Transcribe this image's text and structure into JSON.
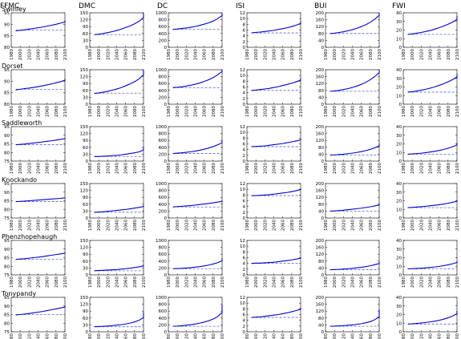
{
  "figure": {
    "column_headers": [
      "FFMC",
      "DMC",
      "DC",
      "ISI",
      "BUI",
      "FWI"
    ],
    "row_titles": [
      "Swinley",
      "Dorset",
      "Saddleworth",
      "Knockando",
      "Phenzhopehaugh",
      "Tonypandy"
    ],
    "x_ticks": [
      "1980",
      "2000",
      "2020",
      "2040",
      "2060",
      "2080",
      "2100"
    ],
    "line_color": "#0000cc",
    "baseline_color": "#5566dd"
  },
  "chart_data": {
    "type": "line",
    "layout": "small multiples, 6 sites (rows) x 6 fire-weather indices (columns)",
    "x_range": [
      1980,
      2100
    ],
    "series_note": "solid line = projected index; dashed line = baseline level",
    "columns": [
      {
        "name": "FFMC",
        "ylims": [
          [
            80,
            95
          ],
          [
            80,
            95
          ],
          [
            75,
            95
          ],
          [
            75,
            95
          ],
          [
            75,
            95
          ],
          [
            75,
            95
          ]
        ],
        "yticks": [
          [
            "80",
            "85",
            "90",
            "95"
          ],
          [
            "80",
            "85",
            "90",
            "95"
          ],
          [
            "75",
            "80",
            "85",
            "90",
            "95"
          ],
          [
            "75",
            "80",
            "85",
            "90",
            "95"
          ],
          [
            "75",
            "80",
            "85",
            "90",
            "95"
          ],
          [
            "75",
            "80",
            "85",
            "90",
            "95"
          ]
        ]
      },
      {
        "name": "DMC",
        "ylims": [
          [
            0,
            150
          ],
          [
            0,
            150
          ],
          [
            0,
            150
          ],
          [
            0,
            150
          ],
          [
            0,
            150
          ],
          [
            0,
            150
          ]
        ],
        "yticks": [
          [
            "0",
            "30",
            "60",
            "90",
            "120",
            "150"
          ],
          [
            "0",
            "30",
            "60",
            "90",
            "120",
            "150"
          ],
          [
            "0",
            "30",
            "60",
            "90",
            "120",
            "150"
          ],
          [
            "0",
            "30",
            "60",
            "90",
            "120",
            "150"
          ],
          [
            "0",
            "30",
            "60",
            "90",
            "120",
            "150"
          ],
          [
            "0",
            "30",
            "60",
            "90",
            "120",
            "150"
          ]
        ]
      },
      {
        "name": "DC",
        "ylims": [
          [
            0,
            1000
          ],
          [
            0,
            1000
          ],
          [
            0,
            1000
          ],
          [
            0,
            1000
          ],
          [
            0,
            1000
          ],
          [
            0,
            1000
          ]
        ],
        "yticks": [
          [
            "0",
            "200",
            "400",
            "600",
            "800",
            "1000"
          ],
          [
            "0",
            "200",
            "400",
            "600",
            "800",
            "1000"
          ],
          [
            "0",
            "200",
            "400",
            "600",
            "800",
            "1000"
          ],
          [
            "0",
            "200",
            "400",
            "600",
            "800",
            "1000"
          ],
          [
            "0",
            "200",
            "400",
            "600",
            "800",
            "1000"
          ],
          [
            "0",
            "200",
            "400",
            "600",
            "800",
            "1000"
          ]
        ]
      },
      {
        "name": "ISI",
        "ylims": [
          [
            0,
            12
          ],
          [
            0,
            12
          ],
          [
            0,
            12
          ],
          [
            0,
            12
          ],
          [
            0,
            12
          ],
          [
            0,
            12
          ]
        ],
        "yticks": [
          [
            "0",
            "2",
            "4",
            "6",
            "8",
            "10",
            "12"
          ],
          [
            "0",
            "2",
            "4",
            "6",
            "8",
            "10",
            "12"
          ],
          [
            "0",
            "2",
            "4",
            "6",
            "8",
            "10",
            "12"
          ],
          [
            "0",
            "2",
            "4",
            "6",
            "8",
            "10",
            "12"
          ],
          [
            "0",
            "2",
            "4",
            "6",
            "8",
            "10",
            "12"
          ],
          [
            "0",
            "2",
            "4",
            "6",
            "8",
            "10",
            "12"
          ]
        ]
      },
      {
        "name": "BUI",
        "ylims": [
          [
            0,
            200
          ],
          [
            0,
            200
          ],
          [
            0,
            200
          ],
          [
            0,
            200
          ],
          [
            0,
            200
          ],
          [
            0,
            200
          ]
        ],
        "yticks": [
          [
            "0",
            "40",
            "80",
            "120",
            "160",
            "200"
          ],
          [
            "0",
            "40",
            "80",
            "120",
            "160",
            "200"
          ],
          [
            "0",
            "40",
            "80",
            "120",
            "160",
            "200"
          ],
          [
            "0",
            "40",
            "80",
            "120",
            "160",
            "200"
          ],
          [
            "0",
            "40",
            "80",
            "120",
            "160",
            "200"
          ],
          [
            "0",
            "40",
            "80",
            "120",
            "160",
            "200"
          ]
        ]
      },
      {
        "name": "FWI",
        "ylims": [
          [
            0,
            40
          ],
          [
            0,
            40
          ],
          [
            0,
            40
          ],
          [
            0,
            40
          ],
          [
            0,
            40
          ],
          [
            0,
            40
          ]
        ],
        "yticks": [
          [
            "0",
            "10",
            "20",
            "30",
            "40"
          ],
          [
            "0",
            "10",
            "20",
            "30",
            "40"
          ],
          [
            "0",
            "10",
            "20",
            "30",
            "40"
          ],
          [
            "0",
            "10",
            "20",
            "30",
            "40"
          ],
          [
            "0",
            "10",
            "20",
            "30",
            "40"
          ],
          [
            "0",
            "10",
            "20",
            "30",
            "40"
          ]
        ]
      }
    ],
    "years": [
      1990,
      2000,
      2010,
      2020,
      2030,
      2040,
      2050,
      2060,
      2070,
      2080,
      2090,
      2100,
      2110
    ],
    "panels": {
      "FFMC": [
        {
          "base": 87.5,
          "values": [
            87.2,
            87.4,
            87.6,
            87.9,
            88.2,
            88.5,
            88.8,
            89.2,
            89.6,
            90.0,
            90.5,
            91.0,
            91.7
          ]
        },
        {
          "base": 86.5,
          "values": [
            86.2,
            86.5,
            86.8,
            87.0,
            87.3,
            87.6,
            88.0,
            88.4,
            88.8,
            89.3,
            89.8,
            90.4,
            91.0
          ]
        },
        {
          "base": 84.5,
          "values": [
            84.5,
            84.7,
            84.9,
            85.2,
            85.5,
            85.8,
            86.1,
            86.5,
            86.8,
            87.2,
            87.6,
            88.0,
            88.4
          ]
        },
        {
          "base": 84.5,
          "values": [
            84.5,
            84.6,
            84.8,
            85.0,
            85.2,
            85.4,
            85.6,
            85.8,
            86.0,
            86.2,
            86.4,
            86.7,
            87.0
          ]
        },
        {
          "base": 84.0,
          "values": [
            84.0,
            84.2,
            84.4,
            84.7,
            85.0,
            85.3,
            85.6,
            86.0,
            86.4,
            86.8,
            87.2,
            87.6,
            88.0
          ]
        },
        {
          "base": 85.0,
          "values": [
            84.8,
            85.0,
            85.3,
            85.6,
            86.0,
            86.4,
            86.8,
            87.3,
            87.8,
            88.3,
            88.8,
            89.4,
            90.0
          ]
        }
      ],
      "DMC": [
        {
          "base": 55,
          "values": [
            55,
            57,
            60,
            64,
            68,
            73,
            79,
            86,
            93,
            102,
            113,
            130,
            150
          ]
        },
        {
          "base": 48,
          "values": [
            47,
            49,
            52,
            56,
            61,
            66,
            72,
            80,
            88,
            98,
            110,
            128,
            150
          ]
        },
        {
          "base": 20,
          "values": [
            20,
            20,
            21,
            22,
            24,
            25,
            27,
            30,
            33,
            36,
            40,
            48,
            60
          ]
        },
        {
          "base": 25,
          "values": [
            25,
            26,
            27,
            29,
            31,
            33,
            35,
            37,
            40,
            43,
            46,
            50,
            55
          ]
        },
        {
          "base": 18,
          "values": [
            18,
            19,
            20,
            21,
            22,
            23,
            25,
            27,
            29,
            32,
            35,
            39,
            45
          ]
        },
        {
          "base": 22,
          "values": [
            22,
            23,
            24,
            25,
            27,
            29,
            31,
            34,
            38,
            43,
            50,
            62,
            85
          ]
        }
      ],
      "DC": [
        {
          "base": 520,
          "values": [
            520,
            530,
            545,
            560,
            580,
            605,
            635,
            670,
            710,
            760,
            830,
            920,
            1000
          ]
        },
        {
          "base": 480,
          "values": [
            480,
            490,
            505,
            525,
            550,
            580,
            615,
            660,
            710,
            770,
            850,
            950,
            1000
          ]
        },
        {
          "base": 220,
          "values": [
            220,
            230,
            240,
            255,
            270,
            290,
            315,
            345,
            380,
            420,
            470,
            530,
            600
          ]
        },
        {
          "base": 320,
          "values": [
            320,
            330,
            340,
            350,
            360,
            375,
            390,
            405,
            420,
            440,
            460,
            485,
            510
          ]
        },
        {
          "base": 180,
          "values": [
            180,
            185,
            190,
            200,
            210,
            225,
            240,
            260,
            285,
            315,
            355,
            410,
            480
          ]
        },
        {
          "base": 160,
          "values": [
            160,
            165,
            175,
            190,
            205,
            225,
            250,
            280,
            320,
            370,
            440,
            560,
            780
          ]
        }
      ],
      "ISI": [
        {
          "base": 5.0,
          "values": [
            5.0,
            5.2,
            5.3,
            5.5,
            5.7,
            5.9,
            6.2,
            6.5,
            6.8,
            7.2,
            7.7,
            8.3,
            9.0
          ]
        },
        {
          "base": 4.8,
          "values": [
            4.8,
            4.9,
            5.1,
            5.3,
            5.5,
            5.8,
            6.1,
            6.5,
            6.9,
            7.3,
            7.8,
            8.4,
            9.0
          ]
        },
        {
          "base": 5.0,
          "values": [
            5.0,
            5.1,
            5.2,
            5.3,
            5.5,
            5.7,
            5.9,
            6.1,
            6.4,
            6.7,
            7.0,
            7.4,
            7.8
          ]
        },
        {
          "base": 7.8,
          "values": [
            7.8,
            7.8,
            7.9,
            8.0,
            8.1,
            8.3,
            8.5,
            8.7,
            8.9,
            9.2,
            9.5,
            9.9,
            10.3
          ]
        },
        {
          "base": 4.0,
          "values": [
            4.0,
            4.1,
            4.1,
            4.2,
            4.3,
            4.4,
            4.6,
            4.8,
            5.0,
            5.2,
            5.5,
            5.8,
            6.0
          ]
        },
        {
          "base": 5.0,
          "values": [
            5.0,
            5.1,
            5.2,
            5.4,
            5.6,
            5.8,
            6.0,
            6.3,
            6.6,
            7.0,
            7.4,
            7.9,
            8.4
          ]
        }
      ],
      "BUI": [
        {
          "base": 80,
          "values": [
            80,
            82,
            86,
            90,
            96,
            102,
            110,
            120,
            131,
            145,
            163,
            185,
            200
          ]
        },
        {
          "base": 75,
          "values": [
            75,
            77,
            80,
            85,
            90,
            97,
            105,
            115,
            127,
            142,
            160,
            183,
            200
          ]
        },
        {
          "base": 35,
          "values": [
            35,
            36,
            38,
            40,
            43,
            46,
            50,
            55,
            61,
            68,
            77,
            88,
            100
          ]
        },
        {
          "base": 40,
          "values": [
            40,
            41,
            43,
            45,
            48,
            51,
            54,
            57,
            61,
            65,
            70,
            76,
            82
          ]
        },
        {
          "base": 30,
          "values": [
            30,
            31,
            32,
            34,
            36,
            38,
            41,
            44,
            48,
            53,
            59,
            66,
            75
          ]
        },
        {
          "base": 32,
          "values": [
            32,
            33,
            34,
            36,
            38,
            40,
            43,
            47,
            52,
            59,
            70,
            88,
            130
          ]
        }
      ],
      "FWI": [
        {
          "base": 15,
          "values": [
            15,
            15.5,
            16.3,
            17.2,
            18.3,
            19.5,
            21,
            22.7,
            24.5,
            26.7,
            29.2,
            32.2,
            36
          ]
        },
        {
          "base": 14,
          "values": [
            14,
            14.5,
            15.3,
            16.2,
            17.3,
            18.6,
            20,
            21.8,
            23.7,
            25.9,
            28.5,
            31.6,
            35
          ]
        },
        {
          "base": 8,
          "values": [
            8,
            8.3,
            8.7,
            9.2,
            9.8,
            10.5,
            11.3,
            12.3,
            13.5,
            14.9,
            16.6,
            18.7,
            21
          ]
        },
        {
          "base": 12,
          "values": [
            12,
            12.3,
            12.7,
            13.1,
            13.6,
            14.1,
            14.7,
            15.4,
            16.2,
            17.1,
            18.2,
            19.4,
            20.8
          ]
        },
        {
          "base": 7,
          "values": [
            7,
            7.2,
            7.5,
            7.8,
            8.2,
            8.7,
            9.2,
            9.9,
            10.7,
            11.7,
            12.9,
            14.3,
            16
          ]
        },
        {
          "base": 9,
          "values": [
            9,
            9.3,
            9.7,
            10.2,
            10.8,
            11.5,
            12.3,
            13.3,
            14.6,
            16.2,
            18.3,
            21,
            24.5
          ]
        }
      ]
    }
  }
}
